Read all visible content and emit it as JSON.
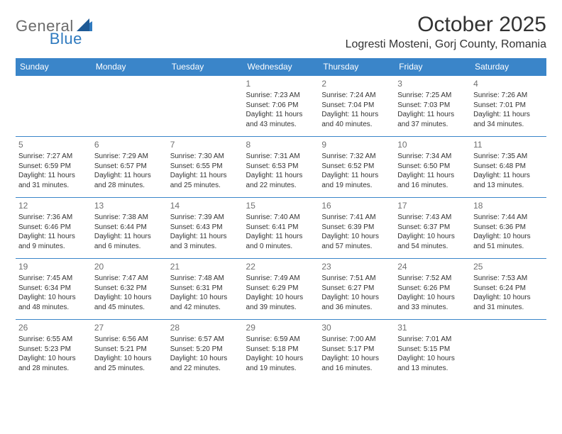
{
  "brand": {
    "part1": "General",
    "part2": "Blue"
  },
  "colors": {
    "header_bg": "#3a85c9",
    "header_text": "#ffffff",
    "border": "#3a85c9",
    "text": "#333333",
    "daynum": "#707070",
    "logo_gray": "#6b6b6b",
    "logo_blue": "#2f7abf",
    "background": "#ffffff"
  },
  "title": "October 2025",
  "location": "Logresti Mosteni, Gorj County, Romania",
  "weekdays": [
    "Sunday",
    "Monday",
    "Tuesday",
    "Wednesday",
    "Thursday",
    "Friday",
    "Saturday"
  ],
  "weeks": [
    [
      null,
      null,
      null,
      {
        "d": "1",
        "sr": "7:23 AM",
        "ss": "7:06 PM",
        "dl": "11 hours and 43 minutes."
      },
      {
        "d": "2",
        "sr": "7:24 AM",
        "ss": "7:04 PM",
        "dl": "11 hours and 40 minutes."
      },
      {
        "d": "3",
        "sr": "7:25 AM",
        "ss": "7:03 PM",
        "dl": "11 hours and 37 minutes."
      },
      {
        "d": "4",
        "sr": "7:26 AM",
        "ss": "7:01 PM",
        "dl": "11 hours and 34 minutes."
      }
    ],
    [
      {
        "d": "5",
        "sr": "7:27 AM",
        "ss": "6:59 PM",
        "dl": "11 hours and 31 minutes."
      },
      {
        "d": "6",
        "sr": "7:29 AM",
        "ss": "6:57 PM",
        "dl": "11 hours and 28 minutes."
      },
      {
        "d": "7",
        "sr": "7:30 AM",
        "ss": "6:55 PM",
        "dl": "11 hours and 25 minutes."
      },
      {
        "d": "8",
        "sr": "7:31 AM",
        "ss": "6:53 PM",
        "dl": "11 hours and 22 minutes."
      },
      {
        "d": "9",
        "sr": "7:32 AM",
        "ss": "6:52 PM",
        "dl": "11 hours and 19 minutes."
      },
      {
        "d": "10",
        "sr": "7:34 AM",
        "ss": "6:50 PM",
        "dl": "11 hours and 16 minutes."
      },
      {
        "d": "11",
        "sr": "7:35 AM",
        "ss": "6:48 PM",
        "dl": "11 hours and 13 minutes."
      }
    ],
    [
      {
        "d": "12",
        "sr": "7:36 AM",
        "ss": "6:46 PM",
        "dl": "11 hours and 9 minutes."
      },
      {
        "d": "13",
        "sr": "7:38 AM",
        "ss": "6:44 PM",
        "dl": "11 hours and 6 minutes."
      },
      {
        "d": "14",
        "sr": "7:39 AM",
        "ss": "6:43 PM",
        "dl": "11 hours and 3 minutes."
      },
      {
        "d": "15",
        "sr": "7:40 AM",
        "ss": "6:41 PM",
        "dl": "11 hours and 0 minutes."
      },
      {
        "d": "16",
        "sr": "7:41 AM",
        "ss": "6:39 PM",
        "dl": "10 hours and 57 minutes."
      },
      {
        "d": "17",
        "sr": "7:43 AM",
        "ss": "6:37 PM",
        "dl": "10 hours and 54 minutes."
      },
      {
        "d": "18",
        "sr": "7:44 AM",
        "ss": "6:36 PM",
        "dl": "10 hours and 51 minutes."
      }
    ],
    [
      {
        "d": "19",
        "sr": "7:45 AM",
        "ss": "6:34 PM",
        "dl": "10 hours and 48 minutes."
      },
      {
        "d": "20",
        "sr": "7:47 AM",
        "ss": "6:32 PM",
        "dl": "10 hours and 45 minutes."
      },
      {
        "d": "21",
        "sr": "7:48 AM",
        "ss": "6:31 PM",
        "dl": "10 hours and 42 minutes."
      },
      {
        "d": "22",
        "sr": "7:49 AM",
        "ss": "6:29 PM",
        "dl": "10 hours and 39 minutes."
      },
      {
        "d": "23",
        "sr": "7:51 AM",
        "ss": "6:27 PM",
        "dl": "10 hours and 36 minutes."
      },
      {
        "d": "24",
        "sr": "7:52 AM",
        "ss": "6:26 PM",
        "dl": "10 hours and 33 minutes."
      },
      {
        "d": "25",
        "sr": "7:53 AM",
        "ss": "6:24 PM",
        "dl": "10 hours and 31 minutes."
      }
    ],
    [
      {
        "d": "26",
        "sr": "6:55 AM",
        "ss": "5:23 PM",
        "dl": "10 hours and 28 minutes."
      },
      {
        "d": "27",
        "sr": "6:56 AM",
        "ss": "5:21 PM",
        "dl": "10 hours and 25 minutes."
      },
      {
        "d": "28",
        "sr": "6:57 AM",
        "ss": "5:20 PM",
        "dl": "10 hours and 22 minutes."
      },
      {
        "d": "29",
        "sr": "6:59 AM",
        "ss": "5:18 PM",
        "dl": "10 hours and 19 minutes."
      },
      {
        "d": "30",
        "sr": "7:00 AM",
        "ss": "5:17 PM",
        "dl": "10 hours and 16 minutes."
      },
      {
        "d": "31",
        "sr": "7:01 AM",
        "ss": "5:15 PM",
        "dl": "10 hours and 13 minutes."
      },
      null
    ]
  ],
  "labels": {
    "sunrise": "Sunrise:",
    "sunset": "Sunset:",
    "daylight": "Daylight:"
  }
}
